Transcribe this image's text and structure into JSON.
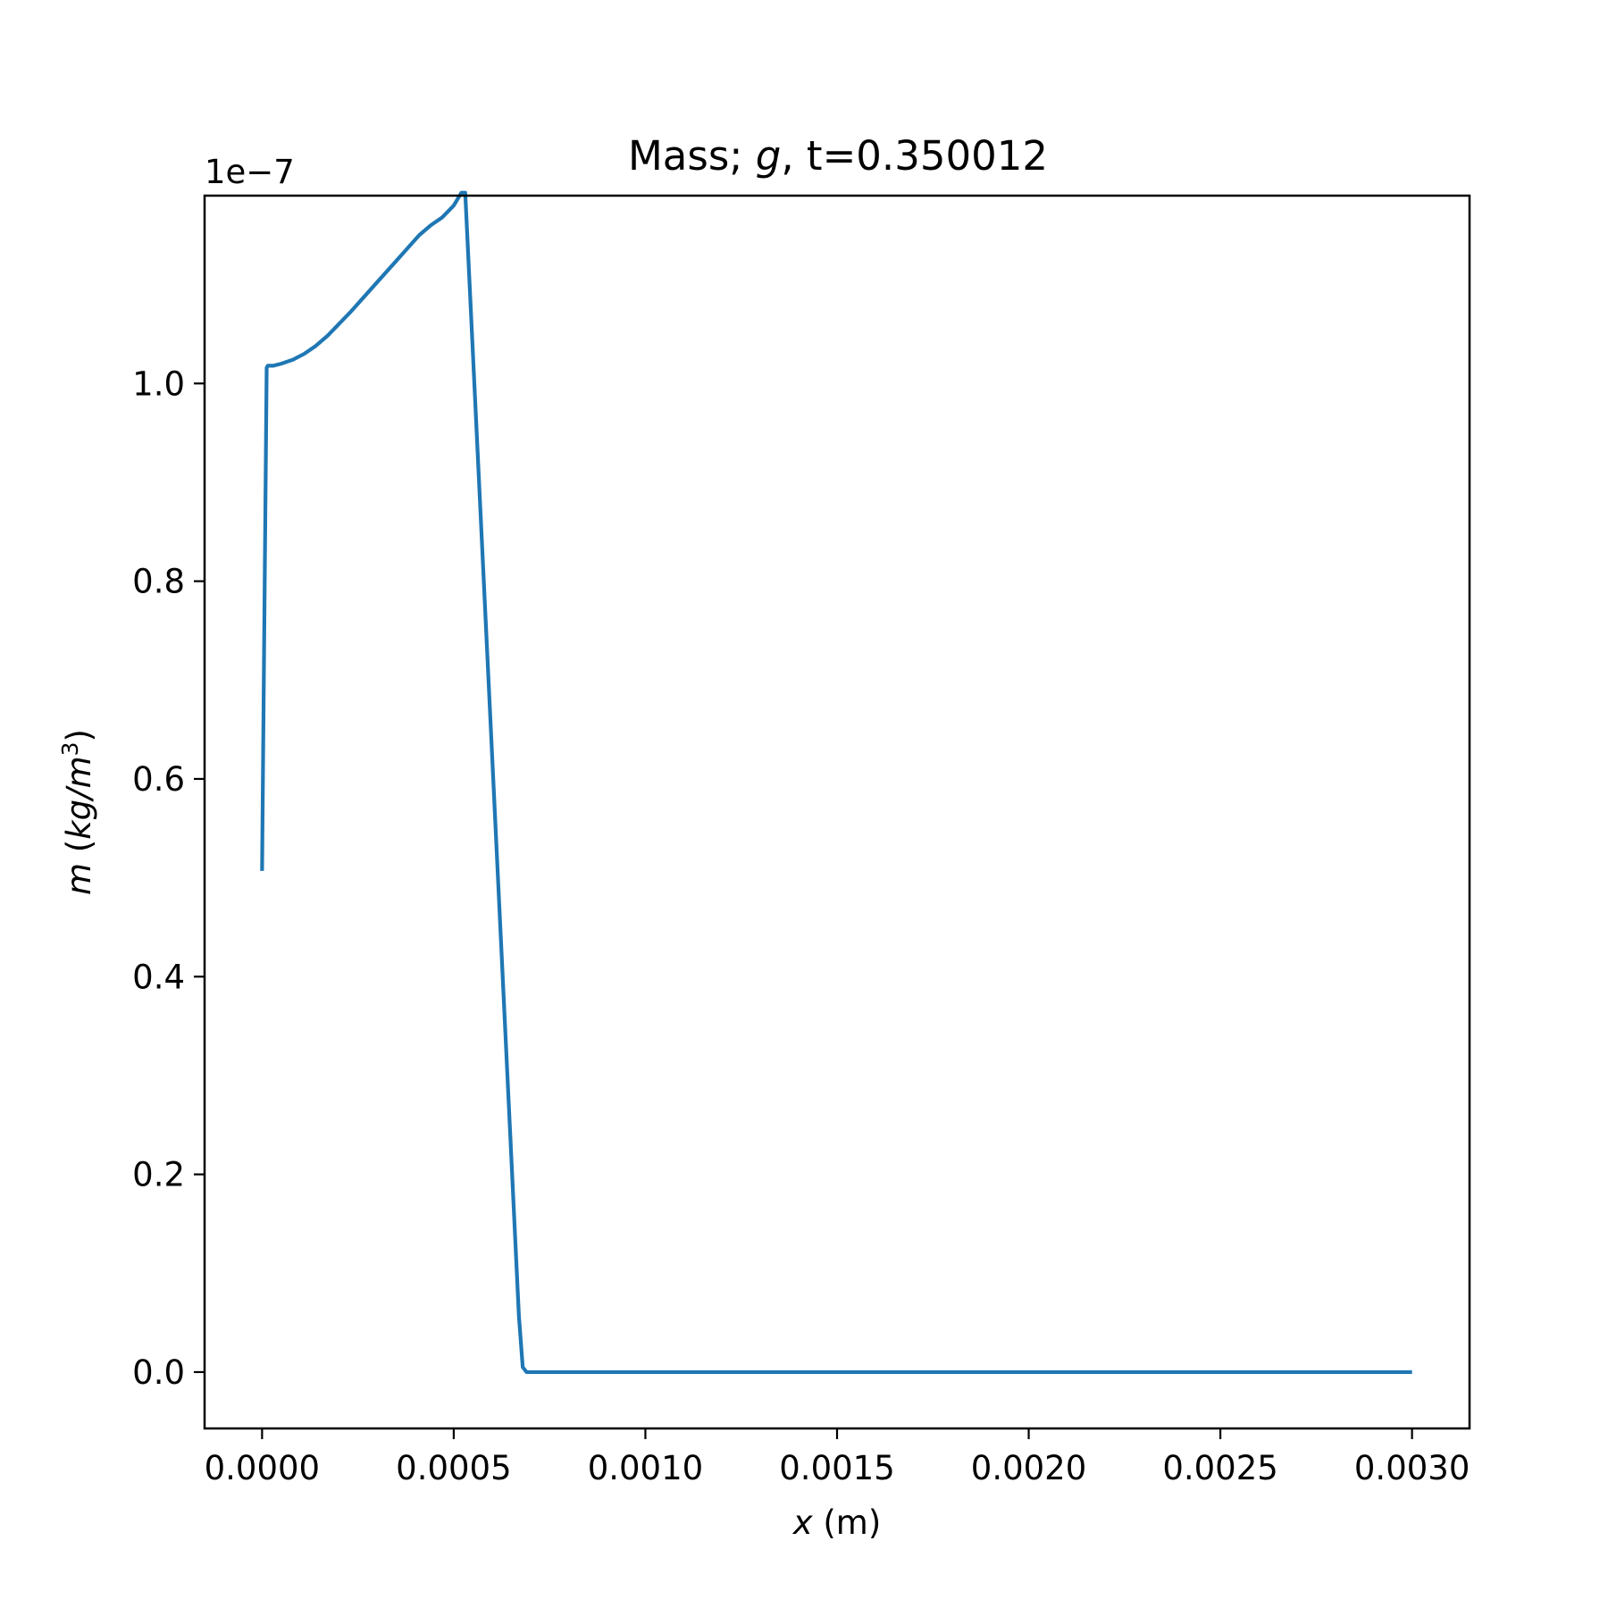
{
  "chart_data": {
    "type": "line",
    "title": {
      "prefix": "Mass; ",
      "variable": "g",
      "suffix": ", t=0.350012"
    },
    "offset_text": "1e−7",
    "xlabel": {
      "variable": "x",
      "unit": " (m)"
    },
    "ylabel": {
      "variable": "m",
      "unit_open": " (",
      "unit": "kg/m",
      "unit_exp": "3",
      "unit_close": ")"
    },
    "xlim": [
      -0.00015,
      0.00315
    ],
    "ylim": [
      -0.057,
      1.19
    ],
    "y_scale": 1e-07,
    "xticks": [
      0.0,
      0.0005,
      0.001,
      0.0015,
      0.002,
      0.0025,
      0.003
    ],
    "xtick_labels": [
      "0.0000",
      "0.0005",
      "0.0010",
      "0.0015",
      "0.0020",
      "0.0025",
      "0.0030"
    ],
    "yticks": [
      0.0,
      0.2,
      0.4,
      0.6,
      0.8,
      1.0
    ],
    "ytick_labels": [
      "0.0",
      "0.2",
      "0.4",
      "0.6",
      "0.8",
      "1.0"
    ],
    "grid": false,
    "legend": null,
    "series": [
      {
        "color": "#1f77b4",
        "x": [
          0.0,
          1.2e-05,
          1.5e-05,
          3e-05,
          5e-05,
          8e-05,
          0.00011,
          0.00014,
          0.00017,
          0.0002,
          0.00023,
          0.00026,
          0.00029,
          0.00032,
          0.00035,
          0.00038,
          0.00041,
          0.00044,
          0.00047,
          0.0005,
          0.00052,
          0.00053,
          0.00067,
          0.00068,
          0.00069,
          0.00075,
          0.0009,
          0.0012,
          0.0015,
          0.0018,
          0.0021,
          0.0024,
          0.0027,
          0.003
        ],
        "y": [
          0.507,
          1.016,
          1.018,
          1.018,
          1.02,
          1.024,
          1.03,
          1.038,
          1.048,
          1.06,
          1.072,
          1.085,
          1.098,
          1.111,
          1.124,
          1.137,
          1.15,
          1.16,
          1.168,
          1.18,
          1.193,
          1.193,
          0.057,
          0.005,
          0.0,
          0.0,
          0.0,
          0.0,
          0.0,
          0.0,
          0.0,
          0.0,
          0.0,
          0.0
        ]
      }
    ]
  }
}
